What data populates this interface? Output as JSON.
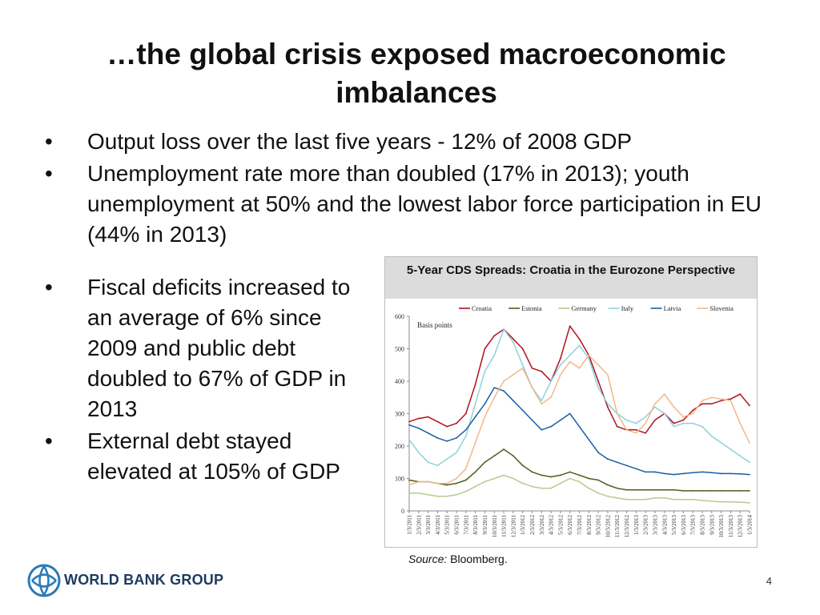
{
  "slide": {
    "title": "…the global crisis exposed macroeconomic imbalances",
    "bullets_top": [
      "Output loss over the last five years - 12% of 2008 GDP",
      "Unemployment rate more than doubled (17% in 2013); youth unemployment at 50% and the lowest labor force participation in EU (44% in 2013)"
    ],
    "bullets_left": [
      "Fiscal deficits  increased to an average of 6% since 2009 and public debt doubled to 67% of GDP in 2013",
      "External debt stayed elevated at 105% of GDP"
    ],
    "bullet_glyph": "•",
    "source_label": "Source:",
    "source_text": "Bloomberg.",
    "logo_text": "WORLD BANK GROUP",
    "page_number": "4"
  },
  "chart_data": {
    "type": "line",
    "title": "5-Year CDS Spreads: Croatia in the Eurozone Perspective",
    "ylabel": "Basis points",
    "ylim": [
      0,
      600
    ],
    "yticks": [
      0,
      100,
      200,
      300,
      400,
      500,
      600
    ],
    "legend_position": "top",
    "grid": false,
    "x": [
      "1/3/2011",
      "2/3/2011",
      "3/3/2011",
      "4/3/2011",
      "5/3/2011",
      "6/3/2011",
      "7/3/2011",
      "8/3/2011",
      "9/3/2011",
      "10/3/2011",
      "11/3/2011",
      "12/3/2011",
      "1/3/2012",
      "2/3/2012",
      "3/3/2012",
      "4/3/2012",
      "5/3/2012",
      "6/3/2012",
      "7/3/2012",
      "8/3/2012",
      "9/3/2012",
      "10/3/2012",
      "11/3/2012",
      "12/3/2012",
      "1/3/2013",
      "2/3/2013",
      "3/3/2013",
      "4/3/2013",
      "5/3/2013",
      "6/3/2013",
      "7/3/2013",
      "8/3/2013",
      "9/3/2013",
      "10/3/2013",
      "11/3/2013",
      "12/3/2013",
      "1/3/2014"
    ],
    "series": [
      {
        "name": "Croatia",
        "color": "#b0121b",
        "values": [
          275,
          285,
          290,
          275,
          260,
          270,
          300,
          390,
          500,
          540,
          560,
          530,
          500,
          440,
          430,
          400,
          470,
          570,
          530,
          480,
          400,
          320,
          260,
          250,
          250,
          240,
          280,
          300,
          270,
          280,
          310,
          330,
          330,
          340,
          345,
          360,
          325
        ]
      },
      {
        "name": "Estonia",
        "color": "#4f5e1e",
        "values": [
          95,
          90,
          90,
          85,
          80,
          85,
          95,
          120,
          150,
          170,
          190,
          170,
          140,
          120,
          110,
          105,
          110,
          120,
          110,
          100,
          95,
          80,
          70,
          65,
          65,
          65,
          65,
          65,
          65,
          62,
          62,
          62,
          62,
          62,
          62,
          62,
          62
        ]
      },
      {
        "name": "Germany",
        "color": "#b5cc8e",
        "values": [
          55,
          55,
          50,
          45,
          45,
          50,
          60,
          75,
          90,
          100,
          110,
          100,
          85,
          75,
          70,
          70,
          85,
          100,
          90,
          70,
          55,
          45,
          40,
          35,
          35,
          35,
          40,
          40,
          35,
          35,
          35,
          32,
          30,
          28,
          28,
          27,
          25
        ]
      },
      {
        "name": "Italy",
        "color": "#8fd1dc",
        "values": [
          220,
          180,
          150,
          140,
          160,
          180,
          230,
          330,
          430,
          480,
          560,
          520,
          450,
          380,
          340,
          400,
          450,
          480,
          510,
          470,
          380,
          330,
          300,
          280,
          270,
          290,
          320,
          300,
          260,
          270,
          270,
          260,
          230,
          210,
          190,
          170,
          150
        ]
      },
      {
        "name": "Latvia",
        "color": "#1c5ea4",
        "values": [
          265,
          255,
          240,
          225,
          215,
          225,
          250,
          290,
          330,
          380,
          370,
          340,
          310,
          280,
          250,
          260,
          280,
          300,
          260,
          220,
          180,
          160,
          150,
          140,
          130,
          120,
          120,
          115,
          112,
          115,
          118,
          120,
          118,
          115,
          115,
          114,
          112
        ]
      },
      {
        "name": "Slovenia",
        "color": "#f0b88a",
        "values": [
          80,
          90,
          90,
          85,
          85,
          100,
          130,
          210,
          290,
          350,
          400,
          420,
          440,
          380,
          330,
          350,
          420,
          460,
          440,
          480,
          450,
          420,
          300,
          250,
          240,
          270,
          330,
          360,
          320,
          290,
          300,
          340,
          350,
          345,
          340,
          270,
          210
        ]
      }
    ]
  }
}
